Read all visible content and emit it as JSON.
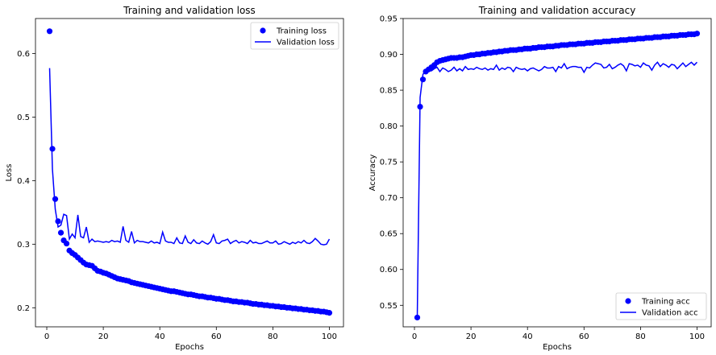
{
  "chart_data": [
    {
      "type": "scatter+line",
      "title": "Training and validation loss",
      "xlabel": "Epochs",
      "ylabel": "Loss",
      "xlim": [
        -4,
        105
      ],
      "ylim": [
        0.17,
        0.655
      ],
      "xticks": [
        0,
        20,
        40,
        60,
        80,
        100
      ],
      "yticks": [
        0.2,
        0.3,
        0.4,
        0.5,
        0.6
      ],
      "xtick_labels": [
        "0",
        "20",
        "40",
        "60",
        "80",
        "100"
      ],
      "ytick_labels": [
        "0.2",
        "0.3",
        "0.4",
        "0.5",
        "0.6"
      ],
      "legend_position": "upper right",
      "grid": false,
      "series": [
        {
          "name": "Training loss",
          "style": "markers",
          "color": "#0000ff",
          "x": [
            1,
            2,
            3,
            4,
            5,
            6,
            7,
            8,
            9,
            10,
            11,
            12,
            13,
            14,
            15,
            16,
            17,
            18,
            19,
            20,
            21,
            22,
            23,
            24,
            25,
            26,
            27,
            28,
            29,
            30,
            31,
            32,
            33,
            34,
            35,
            36,
            37,
            38,
            39,
            40,
            41,
            42,
            43,
            44,
            45,
            46,
            47,
            48,
            49,
            50,
            51,
            52,
            53,
            54,
            55,
            56,
            57,
            58,
            59,
            60,
            61,
            62,
            63,
            64,
            65,
            66,
            67,
            68,
            69,
            70,
            71,
            72,
            73,
            74,
            75,
            76,
            77,
            78,
            79,
            80,
            81,
            82,
            83,
            84,
            85,
            86,
            87,
            88,
            89,
            90,
            91,
            92,
            93,
            94,
            95,
            96,
            97,
            98,
            99,
            100
          ],
          "y": [
            0.635,
            0.45,
            0.371,
            0.336,
            0.318,
            0.306,
            0.301,
            0.29,
            0.286,
            0.283,
            0.279,
            0.275,
            0.271,
            0.268,
            0.267,
            0.266,
            0.262,
            0.258,
            0.257,
            0.255,
            0.254,
            0.252,
            0.25,
            0.248,
            0.246,
            0.245,
            0.244,
            0.243,
            0.242,
            0.24,
            0.239,
            0.238,
            0.237,
            0.236,
            0.235,
            0.234,
            0.233,
            0.232,
            0.231,
            0.23,
            0.229,
            0.228,
            0.227,
            0.226,
            0.226,
            0.225,
            0.224,
            0.223,
            0.222,
            0.221,
            0.221,
            0.22,
            0.219,
            0.218,
            0.218,
            0.217,
            0.216,
            0.216,
            0.215,
            0.214,
            0.214,
            0.213,
            0.212,
            0.212,
            0.211,
            0.21,
            0.21,
            0.209,
            0.209,
            0.208,
            0.208,
            0.207,
            0.206,
            0.206,
            0.205,
            0.205,
            0.204,
            0.204,
            0.203,
            0.203,
            0.202,
            0.202,
            0.201,
            0.201,
            0.2,
            0.2,
            0.199,
            0.199,
            0.198,
            0.198,
            0.197,
            0.197,
            0.196,
            0.196,
            0.195,
            0.195,
            0.194,
            0.194,
            0.193,
            0.192
          ]
        },
        {
          "name": "Validation loss",
          "style": "line",
          "color": "#0000ff",
          "x": [
            1,
            2,
            3,
            4,
            5,
            6,
            7,
            8,
            9,
            10,
            11,
            12,
            13,
            14,
            15,
            16,
            17,
            18,
            19,
            20,
            21,
            22,
            23,
            24,
            25,
            26,
            27,
            28,
            29,
            30,
            31,
            32,
            33,
            34,
            35,
            36,
            37,
            38,
            39,
            40,
            41,
            42,
            43,
            44,
            45,
            46,
            47,
            48,
            49,
            50,
            51,
            52,
            53,
            54,
            55,
            56,
            57,
            58,
            59,
            60,
            61,
            62,
            63,
            64,
            65,
            66,
            67,
            68,
            69,
            70,
            71,
            72,
            73,
            74,
            75,
            76,
            77,
            78,
            79,
            80,
            81,
            82,
            83,
            84,
            85,
            86,
            87,
            88,
            89,
            90,
            91,
            92,
            93,
            94,
            95,
            96,
            97,
            98,
            99,
            100
          ],
          "y": [
            0.577,
            0.418,
            0.355,
            0.327,
            0.33,
            0.347,
            0.345,
            0.308,
            0.316,
            0.31,
            0.346,
            0.312,
            0.31,
            0.327,
            0.303,
            0.308,
            0.304,
            0.305,
            0.304,
            0.303,
            0.304,
            0.303,
            0.306,
            0.304,
            0.305,
            0.303,
            0.328,
            0.306,
            0.303,
            0.32,
            0.302,
            0.306,
            0.304,
            0.304,
            0.303,
            0.302,
            0.305,
            0.302,
            0.303,
            0.301,
            0.319,
            0.305,
            0.303,
            0.303,
            0.301,
            0.31,
            0.302,
            0.301,
            0.313,
            0.303,
            0.301,
            0.307,
            0.302,
            0.301,
            0.305,
            0.302,
            0.3,
            0.304,
            0.315,
            0.302,
            0.301,
            0.305,
            0.306,
            0.308,
            0.301,
            0.304,
            0.306,
            0.302,
            0.304,
            0.303,
            0.301,
            0.306,
            0.302,
            0.303,
            0.301,
            0.301,
            0.303,
            0.305,
            0.302,
            0.302,
            0.305,
            0.3,
            0.301,
            0.304,
            0.302,
            0.3,
            0.303,
            0.301,
            0.304,
            0.302,
            0.306,
            0.302,
            0.301,
            0.304,
            0.309,
            0.305,
            0.3,
            0.299,
            0.3,
            0.308
          ]
        }
      ]
    },
    {
      "type": "scatter+line",
      "title": "Training and validation accuracy",
      "xlabel": "Epochs",
      "ylabel": "Accuracy",
      "xlim": [
        -4,
        105
      ],
      "ylim": [
        0.52,
        0.95
      ],
      "xticks": [
        0,
        20,
        40,
        60,
        80,
        100
      ],
      "yticks": [
        0.55,
        0.6,
        0.65,
        0.7,
        0.75,
        0.8,
        0.85,
        0.9,
        0.95
      ],
      "xtick_labels": [
        "0",
        "20",
        "40",
        "60",
        "80",
        "100"
      ],
      "ytick_labels": [
        "0.55",
        "0.60",
        "0.65",
        "0.70",
        "0.75",
        "0.80",
        "0.85",
        "0.90",
        "0.95"
      ],
      "legend_position": "lower right",
      "grid": false,
      "series": [
        {
          "name": "Training acc",
          "style": "markers",
          "color": "#0000ff",
          "x": [
            1,
            2,
            3,
            4,
            5,
            6,
            7,
            8,
            9,
            10,
            11,
            12,
            13,
            14,
            15,
            16,
            17,
            18,
            19,
            20,
            21,
            22,
            23,
            24,
            25,
            26,
            27,
            28,
            29,
            30,
            31,
            32,
            33,
            34,
            35,
            36,
            37,
            38,
            39,
            40,
            41,
            42,
            43,
            44,
            45,
            46,
            47,
            48,
            49,
            50,
            51,
            52,
            53,
            54,
            55,
            56,
            57,
            58,
            59,
            60,
            61,
            62,
            63,
            64,
            65,
            66,
            67,
            68,
            69,
            70,
            71,
            72,
            73,
            74,
            75,
            76,
            77,
            78,
            79,
            80,
            81,
            82,
            83,
            84,
            85,
            86,
            87,
            88,
            89,
            90,
            91,
            92,
            93,
            94,
            95,
            96,
            97,
            98,
            99,
            100
          ],
          "y": [
            0.533,
            0.827,
            0.865,
            0.876,
            0.879,
            0.882,
            0.885,
            0.889,
            0.891,
            0.892,
            0.893,
            0.894,
            0.895,
            0.895,
            0.895,
            0.896,
            0.896,
            0.897,
            0.898,
            0.899,
            0.899,
            0.9,
            0.9,
            0.901,
            0.901,
            0.902,
            0.902,
            0.903,
            0.903,
            0.904,
            0.904,
            0.905,
            0.905,
            0.906,
            0.906,
            0.906,
            0.907,
            0.907,
            0.908,
            0.908,
            0.908,
            0.909,
            0.909,
            0.91,
            0.91,
            0.91,
            0.911,
            0.911,
            0.911,
            0.912,
            0.912,
            0.913,
            0.913,
            0.913,
            0.914,
            0.914,
            0.914,
            0.915,
            0.915,
            0.915,
            0.916,
            0.916,
            0.916,
            0.917,
            0.917,
            0.917,
            0.918,
            0.918,
            0.918,
            0.919,
            0.919,
            0.919,
            0.92,
            0.92,
            0.92,
            0.921,
            0.921,
            0.921,
            0.922,
            0.922,
            0.922,
            0.923,
            0.923,
            0.923,
            0.924,
            0.924,
            0.924,
            0.925,
            0.925,
            0.925,
            0.926,
            0.926,
            0.926,
            0.927,
            0.927,
            0.927,
            0.928,
            0.928,
            0.928,
            0.929
          ]
        },
        {
          "name": "Validation acc",
          "style": "line",
          "color": "#0000ff",
          "x": [
            1,
            2,
            3,
            4,
            5,
            6,
            7,
            8,
            9,
            10,
            11,
            12,
            13,
            14,
            15,
            16,
            17,
            18,
            19,
            20,
            21,
            22,
            23,
            24,
            25,
            26,
            27,
            28,
            29,
            30,
            31,
            32,
            33,
            34,
            35,
            36,
            37,
            38,
            39,
            40,
            41,
            42,
            43,
            44,
            45,
            46,
            47,
            48,
            49,
            50,
            51,
            52,
            53,
            54,
            55,
            56,
            57,
            58,
            59,
            60,
            61,
            62,
            63,
            64,
            65,
            66,
            67,
            68,
            69,
            70,
            71,
            72,
            73,
            74,
            75,
            76,
            77,
            78,
            79,
            80,
            81,
            82,
            83,
            84,
            85,
            86,
            87,
            88,
            89,
            90,
            91,
            92,
            93,
            94,
            95,
            96,
            97,
            98,
            99,
            100
          ],
          "y": [
            0.535,
            0.84,
            0.872,
            0.878,
            0.881,
            0.877,
            0.88,
            0.882,
            0.876,
            0.881,
            0.879,
            0.876,
            0.878,
            0.882,
            0.877,
            0.88,
            0.877,
            0.883,
            0.879,
            0.88,
            0.879,
            0.882,
            0.88,
            0.879,
            0.881,
            0.878,
            0.88,
            0.879,
            0.885,
            0.878,
            0.881,
            0.879,
            0.882,
            0.881,
            0.876,
            0.882,
            0.88,
            0.879,
            0.88,
            0.877,
            0.88,
            0.881,
            0.879,
            0.877,
            0.879,
            0.883,
            0.881,
            0.881,
            0.882,
            0.876,
            0.883,
            0.881,
            0.887,
            0.88,
            0.882,
            0.883,
            0.883,
            0.882,
            0.882,
            0.875,
            0.882,
            0.881,
            0.885,
            0.888,
            0.887,
            0.886,
            0.881,
            0.882,
            0.886,
            0.88,
            0.882,
            0.885,
            0.887,
            0.884,
            0.877,
            0.887,
            0.886,
            0.884,
            0.885,
            0.882,
            0.888,
            0.885,
            0.884,
            0.878,
            0.885,
            0.889,
            0.883,
            0.887,
            0.885,
            0.882,
            0.886,
            0.885,
            0.88,
            0.884,
            0.888,
            0.883,
            0.886,
            0.889,
            0.885,
            0.889
          ]
        }
      ]
    }
  ]
}
